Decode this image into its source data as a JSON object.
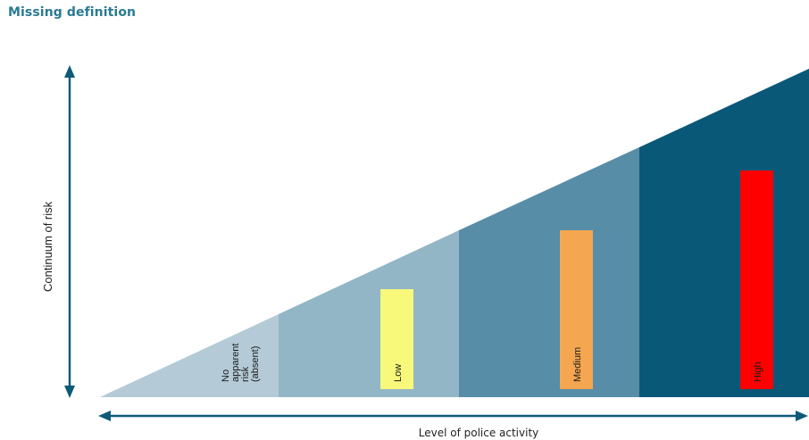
{
  "title": "Missing definition",
  "y_axis_label": "Continuum of risk",
  "x_axis_label": "Level of police activity",
  "zones": [
    {
      "label_lines": [
        "No",
        "apparent",
        "risk",
        "(absent)"
      ],
      "fill": "#b4cbd7"
    },
    {
      "label_lines": [
        "Low"
      ],
      "fill": "#92b6c6",
      "bar_color": "#f8f87a"
    },
    {
      "label_lines": [
        "Medium"
      ],
      "fill": "#578da6",
      "bar_color": "#f5a650"
    },
    {
      "label_lines": [
        "High"
      ],
      "fill": "#0a5878",
      "bar_color": "#ff0000"
    }
  ],
  "colors": {
    "title": "#2a7a94",
    "axis_arrow": "#0d5b78"
  }
}
